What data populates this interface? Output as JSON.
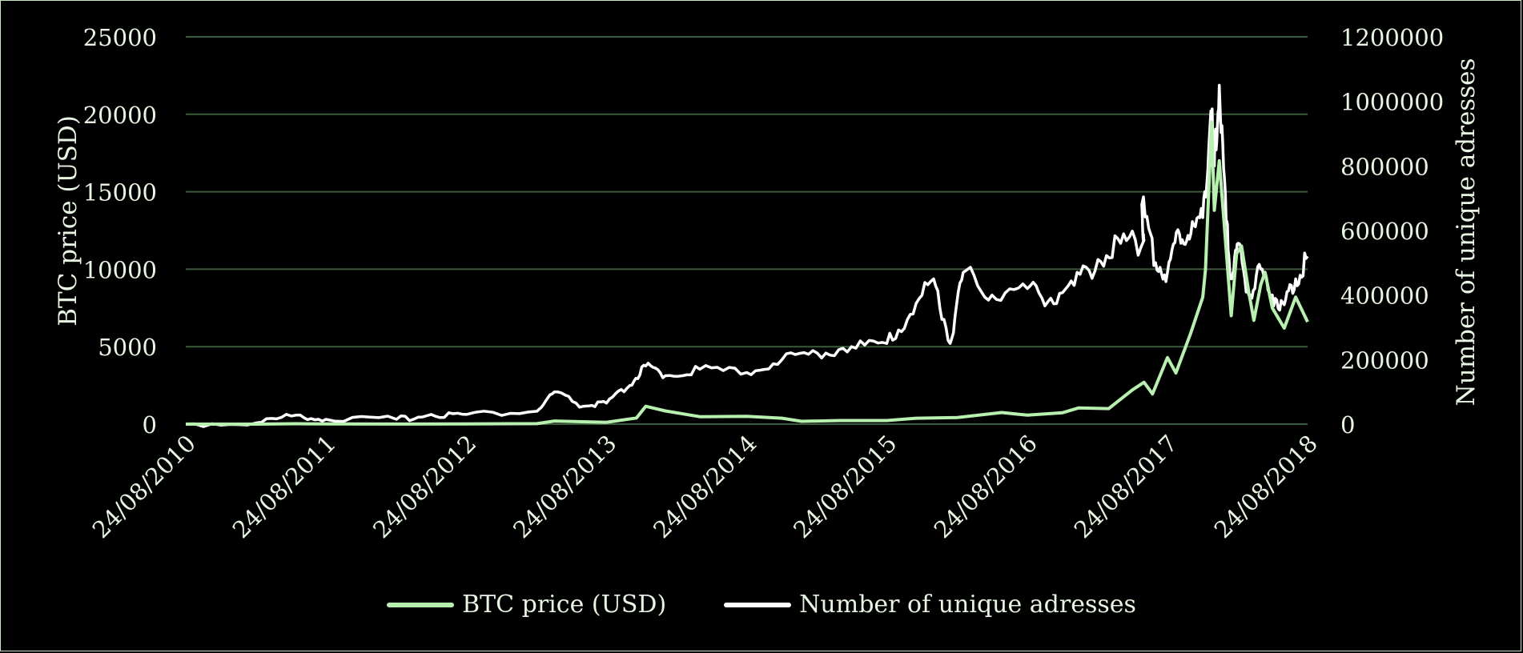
{
  "chart_data": {
    "type": "line",
    "title": "",
    "x_tick_labels": [
      "24/08/2010",
      "24/08/2011",
      "24/08/2012",
      "24/08/2013",
      "24/08/2014",
      "24/08/2015",
      "24/08/2016",
      "24/08/2017",
      "24/08/2018"
    ],
    "x_start": "24/08/2010",
    "x_end": "24/08/2018",
    "y_left": {
      "label": "BTC price (USD)",
      "ylim": [
        0,
        25000
      ],
      "ticks": [
        0,
        5000,
        10000,
        15000,
        20000,
        25000
      ]
    },
    "y_right": {
      "label": "Number of unique adresses",
      "ylim": [
        0,
        1200000
      ],
      "ticks": [
        0,
        200000,
        400000,
        600000,
        800000,
        1000000,
        1200000
      ]
    },
    "grid": true,
    "legend_position": "bottom",
    "colors": {
      "background": "#000000",
      "price": "#b8f0b0",
      "addresses": "#ffffff",
      "grid": "#3a5a3a",
      "text": "#e8f5e2"
    },
    "series": [
      {
        "name": "BTC price (USD)",
        "axis": "left",
        "points": [
          [
            "24/08/2010",
            0.07
          ],
          [
            "24/02/2011",
            1
          ],
          [
            "08/06/2011",
            25
          ],
          [
            "24/08/2011",
            11
          ],
          [
            "24/02/2012",
            5
          ],
          [
            "24/08/2012",
            10
          ],
          [
            "24/02/2013",
            30
          ],
          [
            "10/04/2013",
            200
          ],
          [
            "24/08/2013",
            120
          ],
          [
            "10/11/2013",
            400
          ],
          [
            "04/12/2013",
            1150
          ],
          [
            "24/01/2014",
            850
          ],
          [
            "24/04/2014",
            480
          ],
          [
            "24/08/2014",
            500
          ],
          [
            "24/11/2014",
            380
          ],
          [
            "14/01/2015",
            180
          ],
          [
            "24/04/2015",
            230
          ],
          [
            "24/08/2015",
            230
          ],
          [
            "10/11/2015",
            380
          ],
          [
            "24/02/2016",
            430
          ],
          [
            "18/06/2016",
            750
          ],
          [
            "24/08/2016",
            580
          ],
          [
            "24/11/2016",
            740
          ],
          [
            "05/01/2017",
            1050
          ],
          [
            "24/03/2017",
            1000
          ],
          [
            "24/05/2017",
            2200
          ],
          [
            "24/06/2017",
            2700
          ],
          [
            "16/07/2017",
            1950
          ],
          [
            "24/08/2017",
            4300
          ],
          [
            "15/09/2017",
            3300
          ],
          [
            "24/10/2017",
            5900
          ],
          [
            "24/11/2017",
            8200
          ],
          [
            "01/12/2017",
            10000
          ],
          [
            "17/12/2017",
            19500
          ],
          [
            "24/12/2017",
            13800
          ],
          [
            "06/01/2018",
            17000
          ],
          [
            "24/01/2018",
            11200
          ],
          [
            "06/02/2018",
            7000
          ],
          [
            "20/02/2018",
            11000
          ],
          [
            "05/03/2018",
            11500
          ],
          [
            "24/03/2018",
            8500
          ],
          [
            "06/04/2018",
            6700
          ],
          [
            "24/04/2018",
            9000
          ],
          [
            "05/05/2018",
            9800
          ],
          [
            "24/05/2018",
            7500
          ],
          [
            "24/06/2018",
            6200
          ],
          [
            "24/07/2018",
            8200
          ],
          [
            "24/08/2018",
            6600
          ]
        ]
      },
      {
        "name": "Number of unique adresses",
        "axis": "right",
        "points": [
          [
            "24/08/2010",
            500
          ],
          [
            "24/02/2011",
            4000
          ],
          [
            "08/06/2011",
            28000
          ],
          [
            "24/08/2011",
            15000
          ],
          [
            "24/02/2012",
            15000
          ],
          [
            "24/05/2012",
            30000
          ],
          [
            "24/08/2012",
            30000
          ],
          [
            "24/02/2013",
            40000
          ],
          [
            "10/04/2013",
            100000
          ],
          [
            "24/06/2013",
            55000
          ],
          [
            "24/08/2013",
            65000
          ],
          [
            "24/10/2013",
            120000
          ],
          [
            "04/12/2013",
            180000
          ],
          [
            "24/01/2014",
            150000
          ],
          [
            "24/04/2014",
            170000
          ],
          [
            "24/08/2014",
            160000
          ],
          [
            "24/11/2014",
            200000
          ],
          [
            "24/02/2015",
            220000
          ],
          [
            "24/05/2015",
            240000
          ],
          [
            "24/08/2015",
            250000
          ],
          [
            "24/10/2015",
            340000
          ],
          [
            "24/12/2015",
            450000
          ],
          [
            "05/02/2016",
            250000
          ],
          [
            "10/03/2016",
            470000
          ],
          [
            "24/05/2016",
            400000
          ],
          [
            "24/08/2016",
            420000
          ],
          [
            "24/10/2016",
            390000
          ],
          [
            "24/12/2016",
            430000
          ],
          [
            "24/02/2017",
            510000
          ],
          [
            "24/04/2017",
            560000
          ],
          [
            "24/06/2017",
            570000
          ],
          [
            "18/06/2017",
            680000
          ],
          [
            "24/07/2017",
            500000
          ],
          [
            "24/08/2017",
            470000
          ],
          [
            "24/09/2017",
            590000
          ],
          [
            "24/10/2017",
            590000
          ],
          [
            "24/11/2017",
            640000
          ],
          [
            "15/12/2017",
            970000
          ],
          [
            "24/12/2017",
            800000
          ],
          [
            "06/01/2018",
            1050000
          ],
          [
            "24/01/2018",
            620000
          ],
          [
            "06/02/2018",
            450000
          ],
          [
            "24/02/2018",
            560000
          ],
          [
            "24/03/2018",
            400000
          ],
          [
            "24/04/2018",
            480000
          ],
          [
            "24/05/2018",
            400000
          ],
          [
            "24/06/2018",
            370000
          ],
          [
            "24/07/2018",
            450000
          ],
          [
            "24/08/2018",
            520000
          ]
        ]
      }
    ]
  }
}
